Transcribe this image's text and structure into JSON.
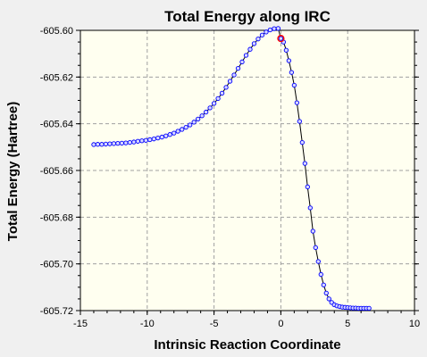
{
  "colors": {
    "background": "#f0f0f0",
    "plot_background": "#fffff0",
    "grid": "#a0a0a0",
    "line": "#000000",
    "marker_stroke": "#0000ff",
    "marker_fill": "#d8d8ff",
    "highlight": "#ff0000"
  },
  "chart_data": {
    "type": "line",
    "title": "Total Energy along IRC",
    "xlabel": "Intrinsic Reaction Coordinate",
    "ylabel": "Total Energy (Hartree)",
    "xlim": [
      -15,
      10
    ],
    "ylim": [
      -605.72,
      -605.6
    ],
    "xticks": [
      -15,
      -10,
      -5,
      0,
      5,
      10
    ],
    "xtick_labels": [
      "-15",
      "-10",
      "-5",
      "0",
      "5",
      "10"
    ],
    "yticks": [
      -605.6,
      -605.62,
      -605.64,
      -605.66,
      -605.68,
      -605.7,
      -605.72
    ],
    "ytick_labels": [
      "-605.60",
      "-605.62",
      "-605.64",
      "-605.66",
      "-605.68",
      "-605.70",
      "-605.72"
    ],
    "grid": true,
    "highlighted_point": {
      "x": 0,
      "y": -605.6035
    },
    "series": [
      {
        "x": [
          -14.0,
          -13.7,
          -13.4,
          -13.1,
          -12.8,
          -12.5,
          -12.2,
          -11.9,
          -11.6,
          -11.3,
          -11.0,
          -10.7,
          -10.4,
          -10.1,
          -9.8,
          -9.5,
          -9.2,
          -8.9,
          -8.6,
          -8.3,
          -8.0,
          -7.7,
          -7.4,
          -7.1,
          -6.8,
          -6.5,
          -6.2,
          -5.9,
          -5.6,
          -5.3,
          -5.0,
          -4.7,
          -4.4,
          -4.1,
          -3.8,
          -3.5,
          -3.2,
          -2.9,
          -2.6,
          -2.3,
          -2.0,
          -1.7,
          -1.4,
          -1.1,
          -0.8,
          -0.5,
          -0.2,
          0.0,
          0.2,
          0.4,
          0.6,
          0.8,
          1.0,
          1.2,
          1.4,
          1.6,
          1.8,
          2.0,
          2.2,
          2.4,
          2.6,
          2.8,
          3.0,
          3.2,
          3.4,
          3.6,
          3.8,
          4.0,
          4.2,
          4.4,
          4.6,
          4.8,
          5.0,
          5.2,
          5.4,
          5.6,
          5.8,
          6.0,
          6.2,
          6.4,
          6.6
        ],
        "y": [
          -605.6489,
          -605.6488,
          -605.6488,
          -605.6487,
          -605.6486,
          -605.6485,
          -605.6484,
          -605.6483,
          -605.6482,
          -605.648,
          -605.6478,
          -605.6475,
          -605.6473,
          -605.6471,
          -605.6468,
          -605.6465,
          -605.6461,
          -605.6457,
          -605.6452,
          -605.6446,
          -605.644,
          -605.6432,
          -605.6424,
          -605.6415,
          -605.6405,
          -605.6393,
          -605.638,
          -605.6366,
          -605.635,
          -605.6332,
          -605.6313,
          -605.6292,
          -605.6269,
          -605.6244,
          -605.6218,
          -605.6191,
          -605.6163,
          -605.6135,
          -605.6107,
          -605.6081,
          -605.6057,
          -605.6037,
          -605.602,
          -605.6007,
          -605.5998,
          -605.5993,
          -605.5992,
          -605.6035,
          -605.605,
          -605.6085,
          -605.613,
          -605.618,
          -605.6235,
          -605.631,
          -605.639,
          -605.648,
          -605.657,
          -605.667,
          -605.676,
          -605.686,
          -605.693,
          -605.699,
          -605.7045,
          -605.709,
          -605.7125,
          -605.715,
          -605.7165,
          -605.7175,
          -605.718,
          -605.7183,
          -605.7185,
          -605.7186,
          -605.7187,
          -605.7188,
          -605.7189,
          -605.7189,
          -605.719,
          -605.719,
          -605.719,
          -605.719,
          -605.719
        ]
      }
    ]
  }
}
